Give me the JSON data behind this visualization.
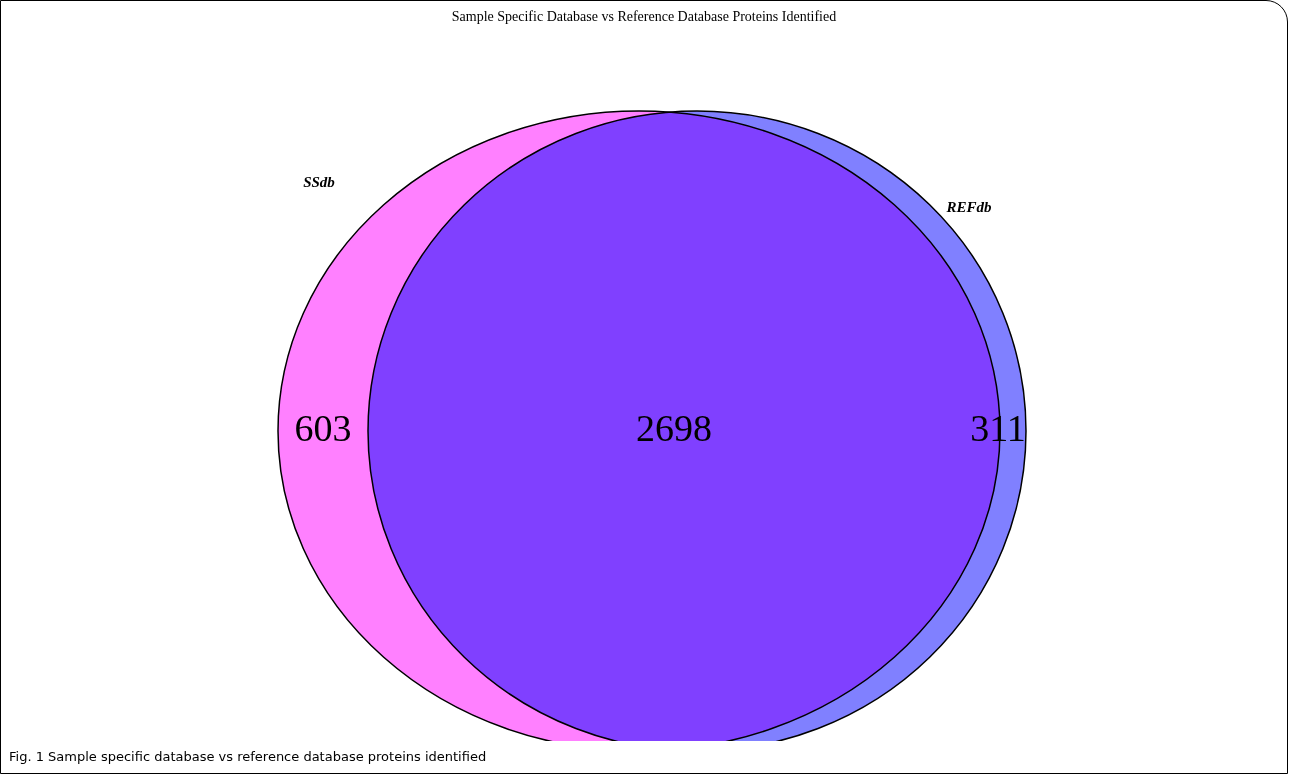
{
  "chart_data": {
    "type": "other",
    "title": "Sample Specific Database vs Reference Database Proteins Identified",
    "categories": [
      "SSdb",
      null,
      "REFdb"
    ],
    "values": [
      603,
      2698,
      311
    ],
    "colors": [
      "#ff80ff",
      "#8040ff",
      "#8080ff"
    ],
    "data_labels": true,
    "annotations": [
      "Fig. 1 Sample specific database vs reference database proteins identified"
    ]
  }
}
